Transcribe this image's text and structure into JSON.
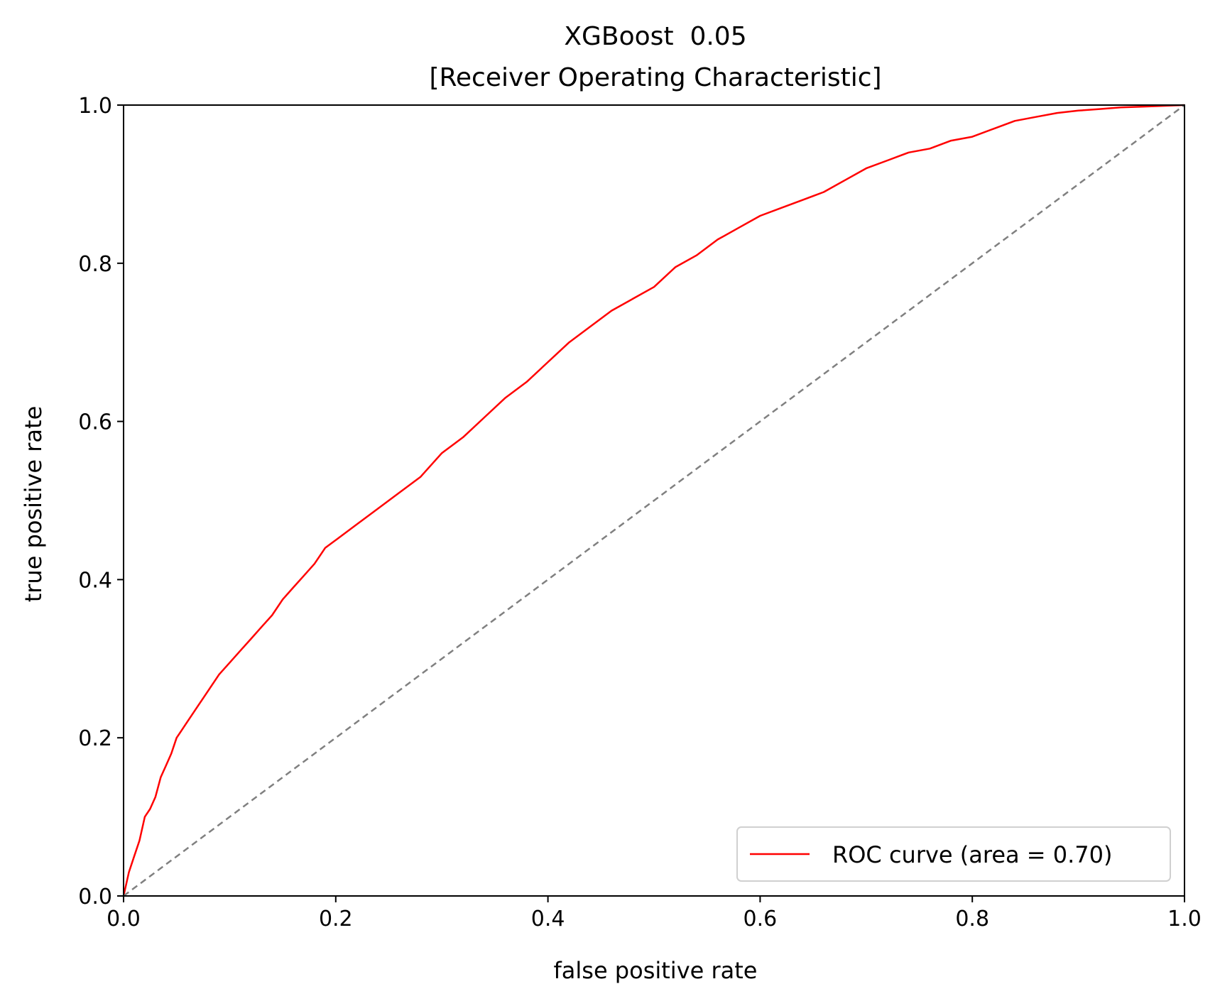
{
  "chart_data": {
    "type": "line",
    "title": "XGBoost  0.05",
    "subtitle": "[Receiver Operating Characteristic]",
    "xlabel": "false positive rate",
    "ylabel": "true positive rate",
    "xlim": [
      0,
      1
    ],
    "ylim": [
      0,
      1
    ],
    "xticks": [
      "0.0",
      "0.2",
      "0.4",
      "0.6",
      "0.8",
      "1.0"
    ],
    "yticks": [
      "0.0",
      "0.2",
      "0.4",
      "0.6",
      "0.8",
      "1.0"
    ],
    "grid": false,
    "legend": {
      "position": "lower-right",
      "entries": [
        "ROC curve (area = 0.70)"
      ]
    },
    "series": [
      {
        "name": "ROC curve (area = 0.70)",
        "color": "#ff0000",
        "style": "solid",
        "x": [
          0,
          0.005,
          0.01,
          0.015,
          0.02,
          0.025,
          0.03,
          0.035,
          0.04,
          0.045,
          0.05,
          0.055,
          0.06,
          0.07,
          0.08,
          0.09,
          0.1,
          0.11,
          0.12,
          0.13,
          0.14,
          0.15,
          0.16,
          0.17,
          0.18,
          0.19,
          0.2,
          0.22,
          0.24,
          0.26,
          0.28,
          0.3,
          0.32,
          0.34,
          0.36,
          0.38,
          0.4,
          0.42,
          0.44,
          0.46,
          0.48,
          0.5,
          0.52,
          0.54,
          0.56,
          0.58,
          0.6,
          0.62,
          0.64,
          0.66,
          0.68,
          0.7,
          0.72,
          0.74,
          0.76,
          0.78,
          0.8,
          0.82,
          0.84,
          0.86,
          0.88,
          0.9,
          0.92,
          0.94,
          0.96,
          0.98,
          1.0
        ],
        "y": [
          0,
          0.03,
          0.05,
          0.07,
          0.1,
          0.11,
          0.125,
          0.15,
          0.165,
          0.18,
          0.2,
          0.21,
          0.22,
          0.24,
          0.26,
          0.28,
          0.295,
          0.31,
          0.325,
          0.34,
          0.355,
          0.375,
          0.39,
          0.405,
          0.42,
          0.44,
          0.45,
          0.47,
          0.49,
          0.51,
          0.53,
          0.56,
          0.58,
          0.605,
          0.63,
          0.65,
          0.675,
          0.7,
          0.72,
          0.74,
          0.755,
          0.77,
          0.795,
          0.81,
          0.83,
          0.845,
          0.86,
          0.87,
          0.88,
          0.89,
          0.905,
          0.92,
          0.93,
          0.94,
          0.945,
          0.955,
          0.96,
          0.97,
          0.98,
          0.985,
          0.99,
          0.993,
          0.995,
          0.997,
          0.998,
          0.999,
          1.0
        ]
      },
      {
        "name": "",
        "color": "#808080",
        "style": "dashed",
        "x": [
          0,
          1
        ],
        "y": [
          0,
          1
        ]
      }
    ]
  }
}
